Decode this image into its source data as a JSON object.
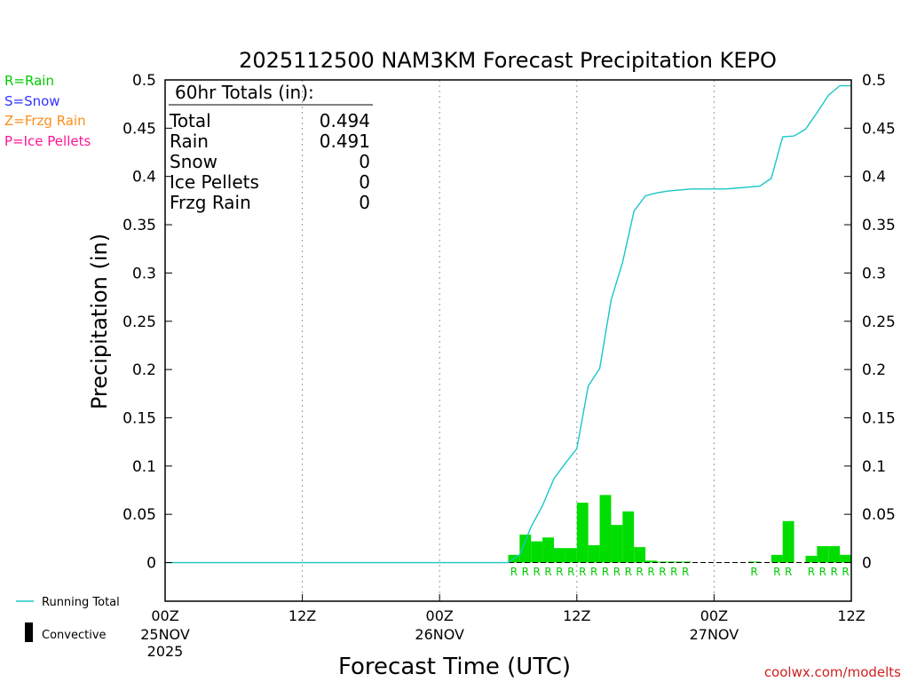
{
  "chart_data": {
    "type": "bar",
    "title": "2025112500 NAM3KM Forecast Precipitation KEPO",
    "xlabel": "Forecast Time (UTC)",
    "ylabel": "Precipitation (in)",
    "ylim": [
      -0.04,
      0.5
    ],
    "xlim": [
      0,
      60
    ],
    "yticks": [
      "0",
      "0.05",
      "0.1",
      "0.15",
      "0.2",
      "0.25",
      "0.3",
      "0.35",
      "0.4",
      "0.45",
      "0.5"
    ],
    "ytick_values": [
      0,
      0.05,
      0.1,
      0.15,
      0.2,
      0.25,
      0.3,
      0.35,
      0.4,
      0.45,
      0.5
    ],
    "xticks": [
      {
        "hour": 0,
        "label": "00Z",
        "date": "25NOV",
        "year": "2025"
      },
      {
        "hour": 12,
        "label": "12Z",
        "date": "",
        "year": ""
      },
      {
        "hour": 24,
        "label": "00Z",
        "date": "26NOV",
        "year": ""
      },
      {
        "hour": 36,
        "label": "12Z",
        "date": "",
        "year": ""
      },
      {
        "hour": 48,
        "label": "00Z",
        "date": "27NOV",
        "year": ""
      },
      {
        "hour": 60,
        "label": "12Z",
        "date": "",
        "year": ""
      }
    ],
    "legend_types": [
      {
        "text": "R=Rain",
        "color": "#00cc00"
      },
      {
        "text": "S=Snow",
        "color": "#3333ff"
      },
      {
        "text": "Z=Frzg Rain",
        "color": "#ff8c1a"
      },
      {
        "text": "P=Ice Pellets",
        "color": "#ff1493"
      }
    ],
    "legend_series": [
      {
        "text": "Running Total",
        "color": "#1ac6c6"
      },
      {
        "text": "Convective",
        "color": "#000000"
      }
    ],
    "totals": {
      "header": "60hr Totals (in):",
      "rows": [
        {
          "label": "Total",
          "value": "0.494"
        },
        {
          "label": "Rain",
          "value": "0.491"
        },
        {
          "label": "Snow",
          "value": "0"
        },
        {
          "label": "Ice Pellets",
          "value": "0"
        },
        {
          "label": "Frzg Rain",
          "value": "0"
        }
      ]
    },
    "bars": {
      "name": "Hourly Precipitation",
      "color": "#00dd00",
      "hours": [
        31,
        32,
        33,
        34,
        35,
        36,
        37,
        38,
        39,
        40,
        41,
        42,
        43,
        44,
        45,
        46,
        47,
        48,
        49,
        50,
        51,
        52,
        53,
        54,
        55,
        56,
        57,
        58,
        59,
        60
      ],
      "values": [
        0.008,
        0.029,
        0.022,
        0.026,
        0.015,
        0.015,
        0.062,
        0.018,
        0.07,
        0.039,
        0.053,
        0.016,
        0.002,
        0.001,
        0.001,
        0.001,
        0.0,
        0.0,
        0.0,
        0.0,
        0.0,
        0.001,
        0.0,
        0.008,
        0.043,
        0.0,
        0.007,
        0.017,
        0.017,
        0.008
      ],
      "type_labels": [
        "R",
        "R",
        "R",
        "R",
        "R",
        "R",
        "R",
        "R",
        "R",
        "R",
        "R",
        "R",
        "R",
        "R",
        "R",
        "R",
        "",
        "",
        "",
        "",
        "",
        "R",
        "",
        "R",
        "R",
        "",
        "R",
        "R",
        "R",
        "R"
      ]
    },
    "running_total": {
      "name": "Running Total",
      "color": "#1ac6c6",
      "x": [
        0,
        30,
        31,
        32,
        33,
        34,
        35,
        36,
        37,
        38,
        39,
        40,
        41,
        42,
        43,
        44,
        45,
        46,
        47,
        48,
        49,
        50,
        51,
        52,
        53,
        54,
        55,
        56,
        57,
        58,
        59,
        60
      ],
      "y": [
        0,
        0,
        0.008,
        0.037,
        0.059,
        0.087,
        0.103,
        0.118,
        0.183,
        0.201,
        0.272,
        0.311,
        0.364,
        0.38,
        0.383,
        0.385,
        0.386,
        0.387,
        0.387,
        0.387,
        0.387,
        0.388,
        0.389,
        0.39,
        0.398,
        0.441,
        0.442,
        0.449,
        0.466,
        0.484,
        0.494,
        0.494
      ]
    },
    "watermark": "coolwx.com/modelts"
  }
}
